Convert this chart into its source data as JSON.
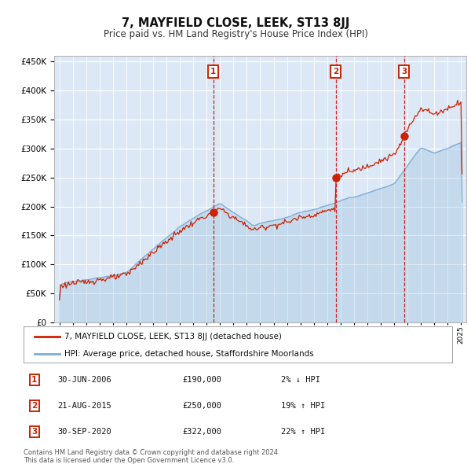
{
  "title": "7, MAYFIELD CLOSE, LEEK, ST13 8JJ",
  "subtitle": "Price paid vs. HM Land Registry's House Price Index (HPI)",
  "legend_line1": "7, MAYFIELD CLOSE, LEEK, ST13 8JJ (detached house)",
  "legend_line2": "HPI: Average price, detached house, Staffordshire Moorlands",
  "transactions": [
    {
      "label": "1",
      "date": "30-JUN-2006",
      "price": 190000,
      "pct": "2%",
      "direction": "↓"
    },
    {
      "label": "2",
      "date": "21-AUG-2015",
      "price": 250000,
      "pct": "19%",
      "direction": "↑"
    },
    {
      "label": "3",
      "date": "30-SEP-2020",
      "price": 322000,
      "pct": "22%",
      "direction": "↑"
    }
  ],
  "transaction_dates_decimal": [
    2006.496,
    2015.643,
    2020.747
  ],
  "transaction_prices": [
    190000,
    250000,
    322000
  ],
  "hpi_line_color": "#7dadd4",
  "property_line_color": "#cc2200",
  "dot_color": "#cc2200",
  "vline_color": "#cc0000",
  "plot_bg": "#dce8f5",
  "grid_color": "#ffffff",
  "ylim": [
    0,
    460000
  ],
  "xlim_start": 1994.6,
  "xlim_end": 2025.4,
  "footer": "Contains HM Land Registry data © Crown copyright and database right 2024.\nThis data is licensed under the Open Government Licence v3.0.",
  "label_box_color": "#cc2200"
}
